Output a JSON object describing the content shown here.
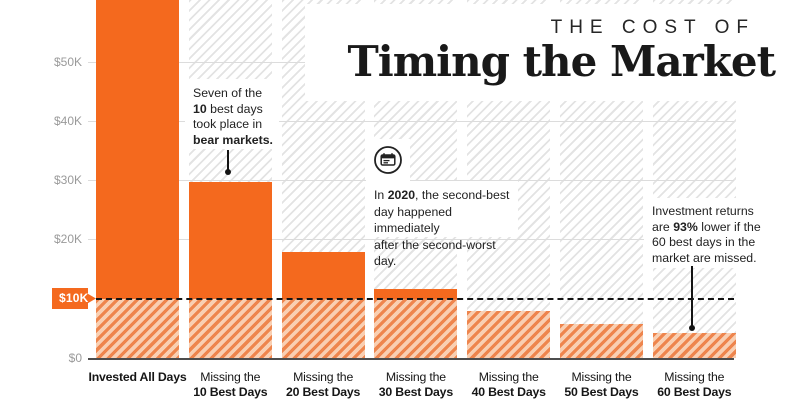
{
  "title": {
    "kicker": "THE COST OF",
    "main": "Timing the Market"
  },
  "colors": {
    "bar_orange": "#f4691e",
    "bar_hatch_stripe": "#ee854d",
    "bar_hatch_bg": "#f9cfb2",
    "bg_hatch_gray": "#e3e3e3",
    "gridline": "#dcdcdc",
    "axis": "#4d4d4d",
    "tick_label_gray": "#9a9a9a",
    "text_dark": "#1f1f1f",
    "threshold_dash": "#141414"
  },
  "chart_data": {
    "type": "bar",
    "title": "The Cost of Timing the Market",
    "categories": [
      "Invested All Days",
      "Missing the 10 Best Days",
      "Missing the 20 Best Days",
      "Missing the 30 Best Days",
      "Missing the 40 Best Days",
      "Missing the 50 Best Days",
      "Missing the 60 Best Days"
    ],
    "values": [
      65000,
      29700,
      17800,
      11700,
      8000,
      5700,
      4200
    ],
    "xlabel": "",
    "ylabel": "",
    "ylim": [
      0,
      60000
    ],
    "grid": true,
    "legend": false,
    "yticks": [
      {
        "label": "$0",
        "value": 0
      },
      {
        "label": "$20K",
        "value": 20000
      },
      {
        "label": "$30K",
        "value": 30000
      },
      {
        "label": "$40K",
        "value": 40000
      },
      {
        "label": "$50K",
        "value": 50000
      }
    ],
    "threshold": {
      "label": "$10K",
      "value": 10000,
      "style": "dashed"
    },
    "notes": "First bar is clipped by the top edge of the image; bar fills are hatched below the $10K threshold line."
  },
  "x_labels": [
    {
      "line1": "Invested All Days",
      "line2": ""
    },
    {
      "line1": "Missing the",
      "line2": "10 Best Days"
    },
    {
      "line1": "Missing the",
      "line2": "20 Best Days"
    },
    {
      "line1": "Missing the",
      "line2": "30 Best Days"
    },
    {
      "line1": "Missing the",
      "line2": "40 Best Days"
    },
    {
      "line1": "Missing the",
      "line2": "50 Best Days"
    },
    {
      "line1": "Missing the",
      "line2": "60 Best Days"
    }
  ],
  "annotations": {
    "bear": {
      "l1": "Seven of the",
      "l2b": "10",
      "l2": " best days",
      "l3": "took place in",
      "l4b": "bear markets."
    },
    "calendar": {
      "icon": "calendar-icon",
      "l1a": "In ",
      "l1b": "2020",
      "l1c": ", the second-best",
      "l2": "day happened immediately",
      "l3": "after the second-worst day."
    },
    "returns": {
      "l1": "Investment returns",
      "l2a": "are ",
      "l2b": "93%",
      "l2c": " lower if the",
      "l3": "60 best days in the",
      "l4": "market are missed."
    }
  }
}
